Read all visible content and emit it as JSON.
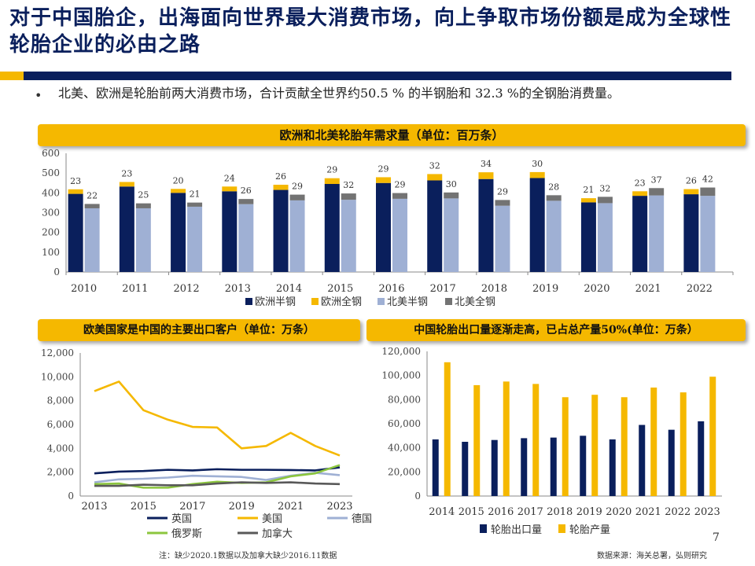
{
  "title": "对于中国胎企，出海面向世界最大消费市场，向上争取市场份额是成为全球性轮胎企业的必由之路",
  "bullet": "北美、欧洲是轮胎前两大消费市场，合计贡献全世界约50.5 % 的半钢胎和 32.3 %的全钢胎消费量。",
  "bullet_symbol": "•",
  "page_number": "7",
  "footnote_left": "注：缺少2020.1数据以及加拿大缺少2016.11数据",
  "footnote_right": "数据来源：海关总署，弘则研究",
  "colors": {
    "navy": "#0a1f5c",
    "gold": "#f5b800",
    "lightblue": "#9fb0d4",
    "gray": "#737373",
    "green": "#8cc63e",
    "darkgray": "#595959"
  },
  "chart_data": [
    {
      "type": "bar",
      "title": "欧洲和北美轮胎年需求量（单位：百万条）",
      "categories": [
        "2010",
        "2011",
        "2012",
        "2013",
        "2014",
        "2015",
        "2016",
        "2017",
        "2018",
        "2019",
        "2020",
        "2021",
        "2022"
      ],
      "ylim": [
        0,
        600
      ],
      "yticks": [
        "0",
        "100",
        "200",
        "300",
        "400",
        "500",
        "600"
      ],
      "series": [
        {
          "name": "欧洲半钢",
          "values": [
            395,
            432,
            400,
            408,
            415,
            445,
            450,
            463,
            470,
            475,
            352,
            385,
            393
          ]
        },
        {
          "name": "欧洲全钢",
          "values": [
            23,
            23,
            20,
            24,
            26,
            29,
            29,
            32,
            34,
            30,
            21,
            23,
            26
          ]
        },
        {
          "name": "北美半钢",
          "values": [
            322,
            322,
            330,
            343,
            362,
            365,
            370,
            372,
            335,
            360,
            348,
            387,
            385
          ]
        },
        {
          "name": "北美全钢",
          "values": [
            22,
            25,
            21,
            26,
            29,
            32,
            29,
            30,
            29,
            28,
            32,
            37,
            42
          ]
        }
      ],
      "labels_top_europe": [
        "23",
        "23",
        "20",
        "24",
        "26",
        "29",
        "29",
        "32",
        "34",
        "30",
        "21",
        "23",
        "26"
      ],
      "labels_top_na": [
        "22",
        "25",
        "21",
        "26",
        "29",
        "32",
        "29",
        "30",
        "29",
        "28",
        "32",
        "37",
        "42"
      ]
    },
    {
      "type": "line",
      "title": "欧美国家是中国的主要出口客户（单位：万条）",
      "x": [
        "2013",
        "2014",
        "2015",
        "2016",
        "2017",
        "2018",
        "2019",
        "2020",
        "2021",
        "2022",
        "2023"
      ],
      "xticks": [
        "2013",
        "2015",
        "2017",
        "2019",
        "2021",
        "2023"
      ],
      "ylim": [
        0,
        12000
      ],
      "yticks": [
        "0",
        "2,000",
        "4,000",
        "6,000",
        "8,000",
        "10,000",
        "12,000"
      ],
      "series": [
        {
          "name": "英国",
          "values": [
            1900,
            2050,
            2100,
            2200,
            2150,
            2250,
            2200,
            2200,
            2180,
            2150,
            2400
          ]
        },
        {
          "name": "美国",
          "values": [
            8800,
            9600,
            7200,
            6400,
            5800,
            5750,
            4000,
            4200,
            5300,
            4200,
            3400
          ]
        },
        {
          "name": "德国",
          "values": [
            1150,
            1400,
            1450,
            1550,
            1700,
            1650,
            1600,
            1350,
            1700,
            1950,
            1750
          ]
        },
        {
          "name": "俄罗斯",
          "values": [
            1000,
            1050,
            700,
            700,
            1000,
            1200,
            1100,
            1150,
            1650,
            1900,
            2600
          ]
        },
        {
          "name": "加拿大",
          "values": [
            850,
            850,
            950,
            900,
            900,
            1050,
            1150,
            1100,
            1150,
            1050,
            1000
          ]
        }
      ]
    },
    {
      "type": "bar",
      "title": "中国轮胎出口量逐渐走高，已占总产量50%(单位：万条）",
      "categories": [
        "2014",
        "2015",
        "2016",
        "2017",
        "2018",
        "2019",
        "2020",
        "2021",
        "2022",
        "2023"
      ],
      "ylim": [
        0,
        120000
      ],
      "yticks": [
        "0",
        "20,000",
        "40,000",
        "60,000",
        "80,000",
        "100,000",
        "120,000"
      ],
      "series": [
        {
          "name": "轮胎出口量",
          "values": [
            47000,
            45000,
            46500,
            48000,
            48500,
            50000,
            47000,
            59000,
            55000,
            62000
          ]
        },
        {
          "name": "轮胎产量",
          "values": [
            111000,
            92000,
            95000,
            93000,
            82000,
            84000,
            82000,
            90000,
            86000,
            99000
          ]
        }
      ]
    }
  ]
}
